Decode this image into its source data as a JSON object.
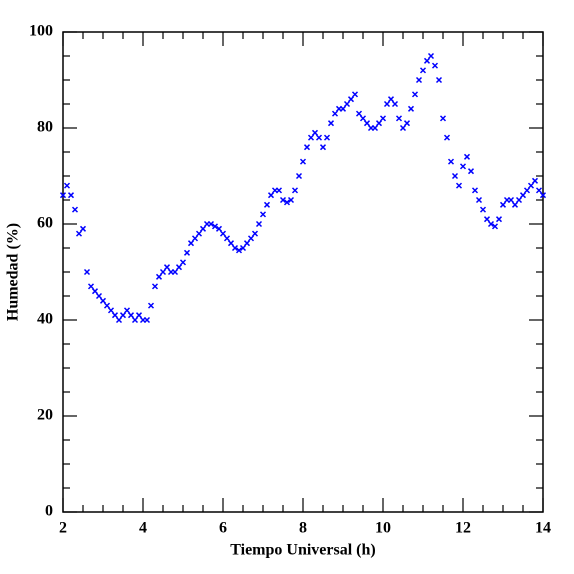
{
  "chart_data": {
    "type": "scatter",
    "xlabel": "Tiempo Universal (h)",
    "ylabel": "Humedad (%)",
    "xlim": [
      2,
      14
    ],
    "ylim": [
      0,
      100
    ],
    "xticks": [
      2,
      4,
      6,
      8,
      10,
      12,
      14
    ],
    "yticks": [
      0,
      20,
      40,
      60,
      80,
      100
    ],
    "xminorticks": [
      2.5,
      3,
      3.5,
      4.5,
      5,
      5.5,
      6.5,
      7,
      7.5,
      8.5,
      9,
      9.5,
      10.5,
      11,
      11.5,
      12.5,
      13,
      13.5
    ],
    "yminorticks": [
      5,
      10,
      15,
      25,
      30,
      35,
      45,
      50,
      55,
      65,
      70,
      75,
      85,
      90,
      95
    ],
    "series": [
      {
        "color": "#0000ff",
        "x": [
          2.0,
          2.1,
          2.2,
          2.3,
          2.4,
          2.5,
          2.6,
          2.7,
          2.8,
          2.9,
          3.0,
          3.1,
          3.2,
          3.3,
          3.4,
          3.5,
          3.6,
          3.7,
          3.8,
          3.9,
          4.0,
          4.1,
          4.2,
          4.3,
          4.4,
          4.5,
          4.6,
          4.7,
          4.8,
          4.9,
          5.0,
          5.1,
          5.2,
          5.3,
          5.4,
          5.5,
          5.6,
          5.7,
          5.8,
          5.9,
          6.0,
          6.1,
          6.2,
          6.3,
          6.4,
          6.5,
          6.6,
          6.7,
          6.8,
          6.9,
          7.0,
          7.1,
          7.2,
          7.3,
          7.4,
          7.5,
          7.6,
          7.7,
          7.8,
          7.9,
          8.0,
          8.1,
          8.2,
          8.3,
          8.4,
          8.5,
          8.6,
          8.7,
          8.8,
          8.9,
          9.0,
          9.1,
          9.2,
          9.3,
          9.4,
          9.5,
          9.6,
          9.7,
          9.8,
          9.9,
          10.0,
          10.1,
          10.2,
          10.3,
          10.4,
          10.5,
          10.6,
          10.7,
          10.8,
          10.9,
          11.0,
          11.1,
          11.2,
          11.3,
          11.4,
          11.5,
          11.6,
          11.7,
          11.8,
          11.9,
          12.0,
          12.1,
          12.2,
          12.3,
          12.4,
          12.5,
          12.6,
          12.7,
          12.8,
          12.9,
          13.0,
          13.1,
          13.2,
          13.3,
          13.4,
          13.5,
          13.6,
          13.7,
          13.8,
          13.9,
          14.0
        ],
        "values": [
          66,
          68,
          66,
          63,
          58,
          59,
          50,
          47,
          46,
          45,
          44,
          43,
          42,
          41,
          40,
          41,
          42,
          41,
          40,
          41,
          40,
          40,
          43,
          47,
          49,
          50,
          51,
          50,
          50,
          51,
          52,
          54,
          56,
          57,
          58,
          59,
          60,
          60,
          59.5,
          59,
          58,
          57,
          56,
          55,
          54.5,
          55,
          56,
          57,
          58,
          60,
          62,
          64,
          66,
          67,
          67,
          65,
          64.5,
          65,
          67,
          70,
          73,
          76,
          78,
          79,
          78,
          76,
          78,
          81,
          83,
          84,
          84,
          85,
          86,
          87,
          83,
          82,
          81,
          80,
          80,
          81,
          82,
          85,
          86,
          85,
          82,
          80,
          81,
          84,
          87,
          90,
          92,
          94,
          95,
          93,
          90,
          82,
          78,
          73,
          70,
          68,
          72,
          74,
          71,
          67,
          65,
          63,
          61,
          60,
          59.5,
          61,
          64,
          65,
          65,
          64,
          65,
          66,
          67,
          68,
          69,
          67,
          66
        ]
      }
    ]
  }
}
